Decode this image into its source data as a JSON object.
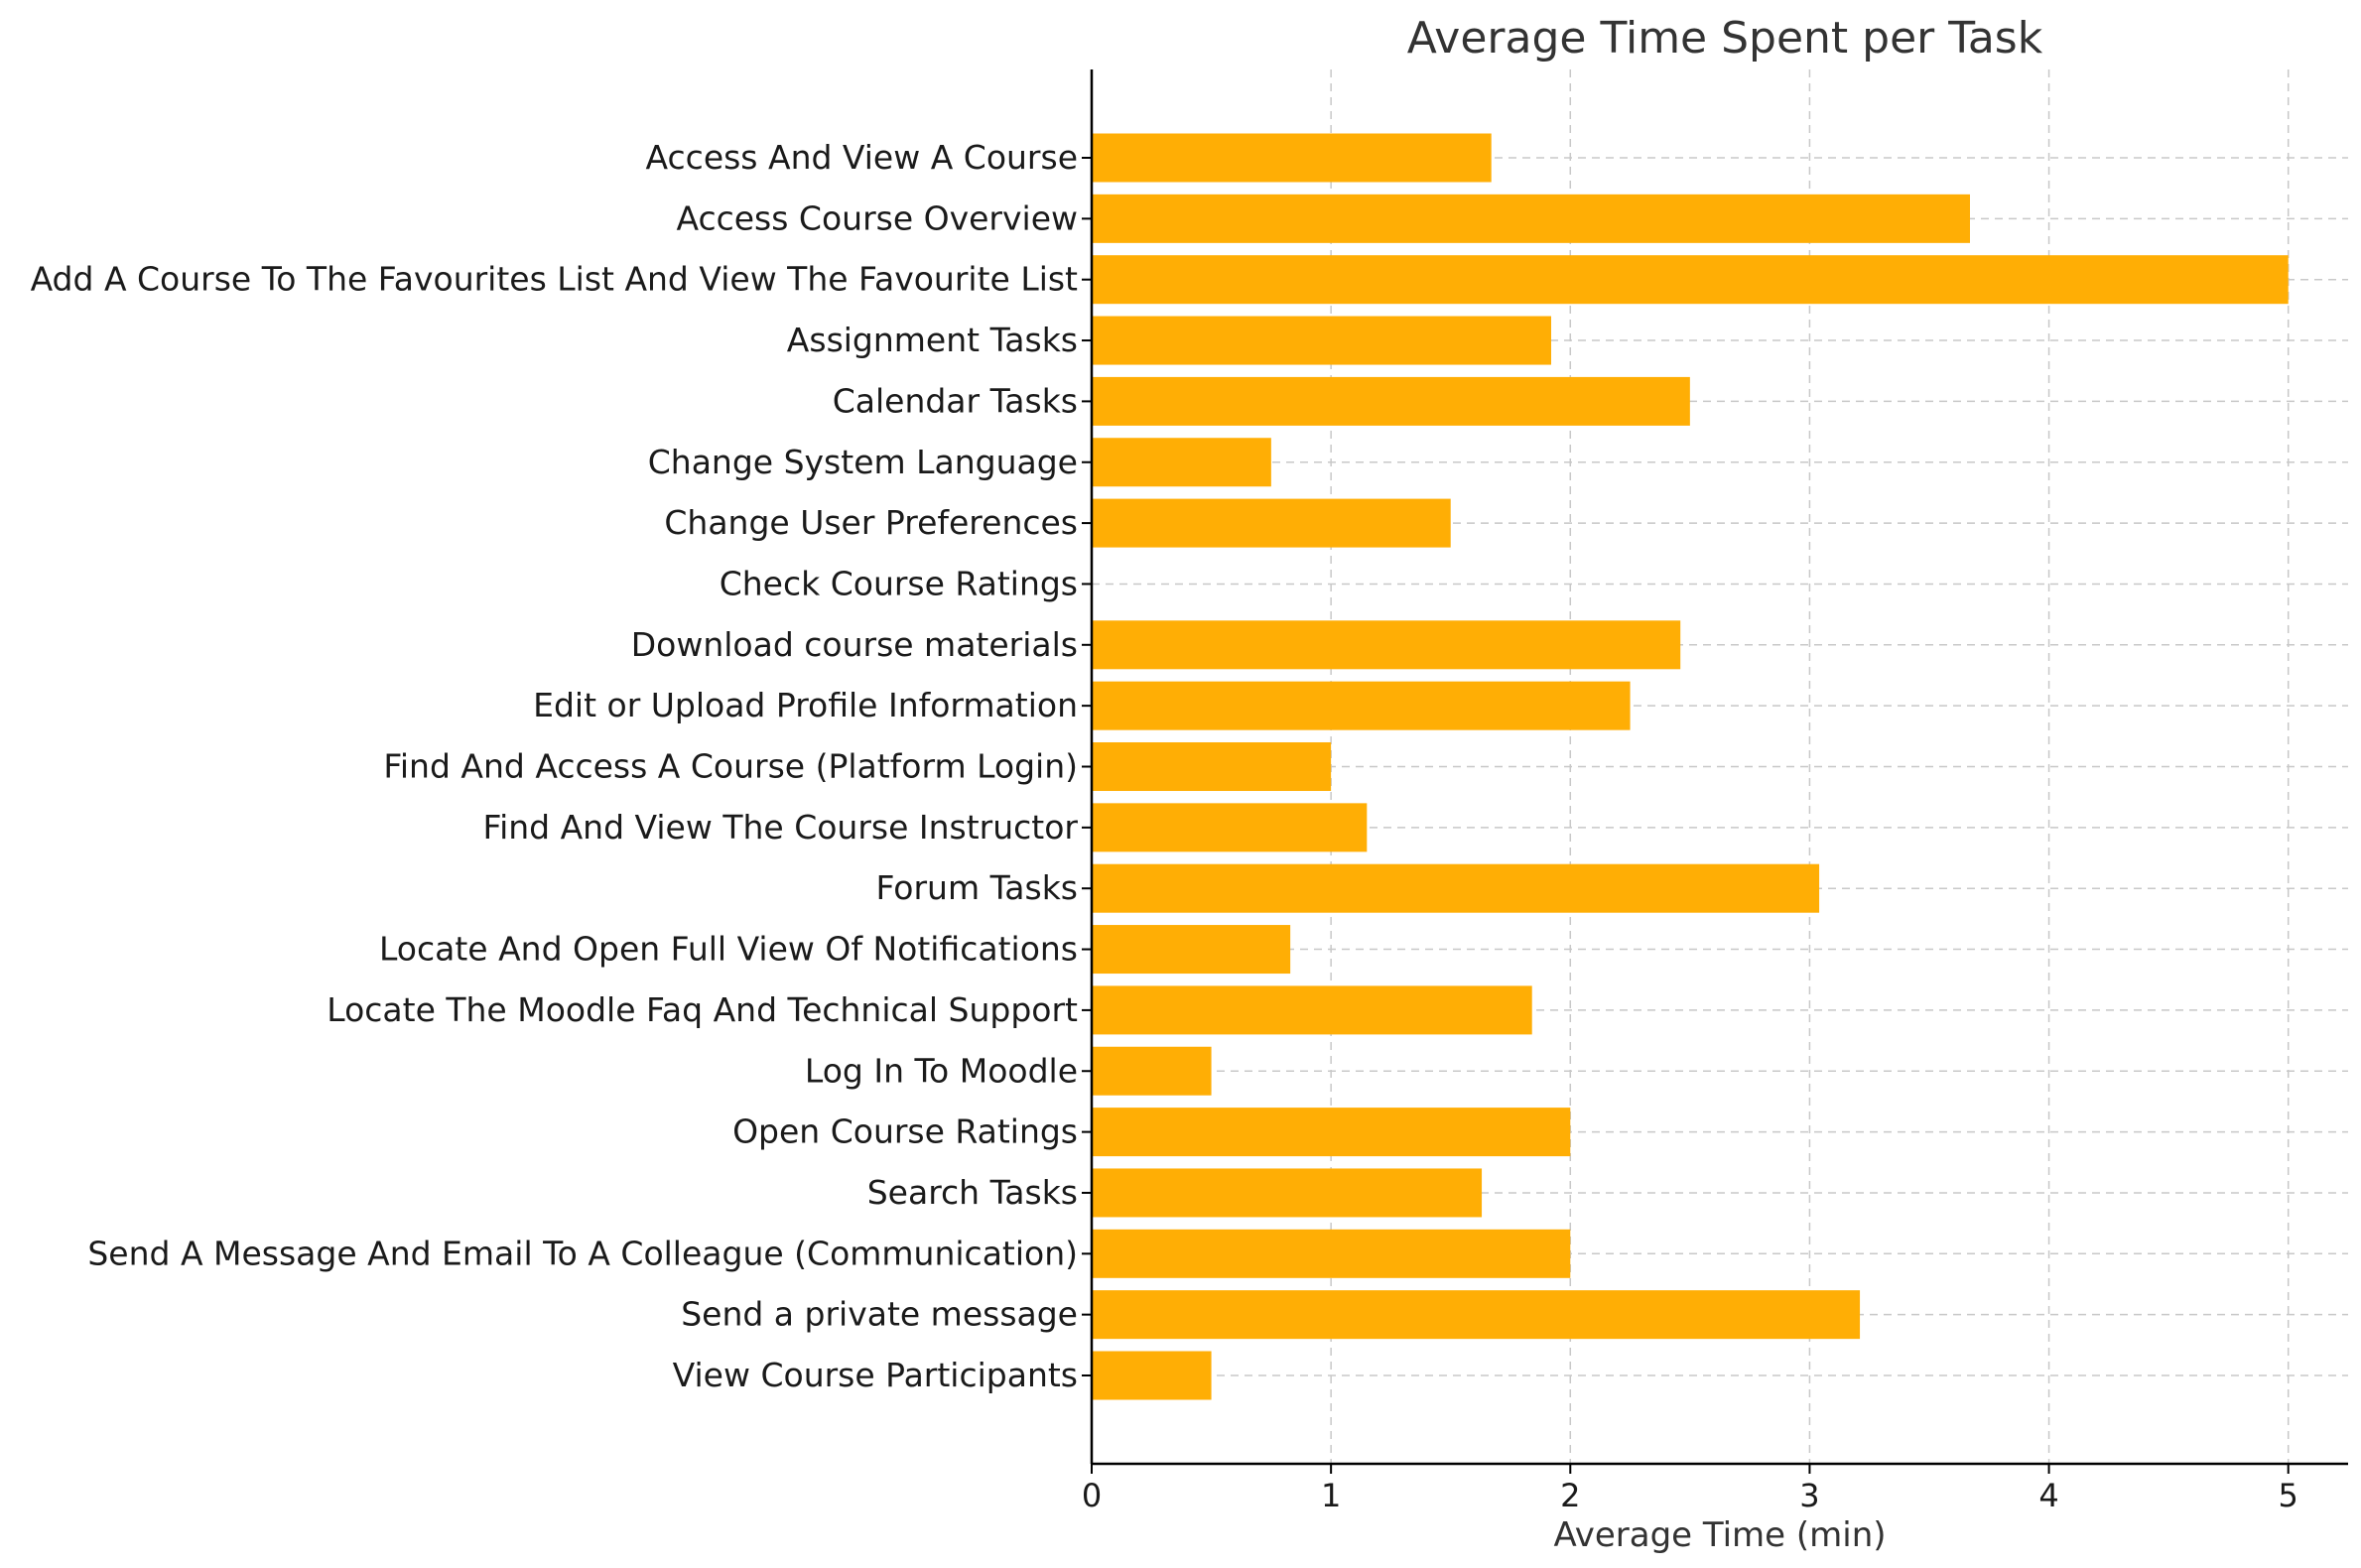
{
  "chart_data": {
    "type": "bar",
    "orientation": "horizontal",
    "title": "Average Time Spent per Task",
    "xlabel": "Average Time (min)",
    "ylabel": "",
    "xlim": [
      0,
      5.25
    ],
    "xticks": [
      0,
      1,
      2,
      3,
      4,
      5
    ],
    "grid": true,
    "bar_color": "#FFAE05",
    "categories": [
      "Access And View A Course",
      "Access Course Overview",
      "Add A Course To The Favourites List And View The Favourite List",
      "Assignment Tasks",
      "Calendar Tasks",
      "Change System Language",
      "Change User Preferences",
      "Check Course Ratings",
      "Download course materials",
      "Edit or Upload Profile Information",
      "Find And Access A Course (Platform Login)",
      "Find And View The Course Instructor",
      "Forum Tasks",
      "Locate And Open Full View Of Notifications",
      "Locate The Moodle Faq And Technical Support",
      "Log In To Moodle",
      "Open Course Ratings",
      "Search Tasks",
      "Send A Message And Email To A Colleague (Communication)",
      "Send a private message",
      "View Course Participants"
    ],
    "values": [
      1.67,
      3.67,
      5.0,
      1.92,
      2.5,
      0.75,
      1.5,
      0,
      2.46,
      2.25,
      1.0,
      1.15,
      3.04,
      0.83,
      1.84,
      0.5,
      2.0,
      1.63,
      2.0,
      3.21,
      0.5
    ]
  }
}
